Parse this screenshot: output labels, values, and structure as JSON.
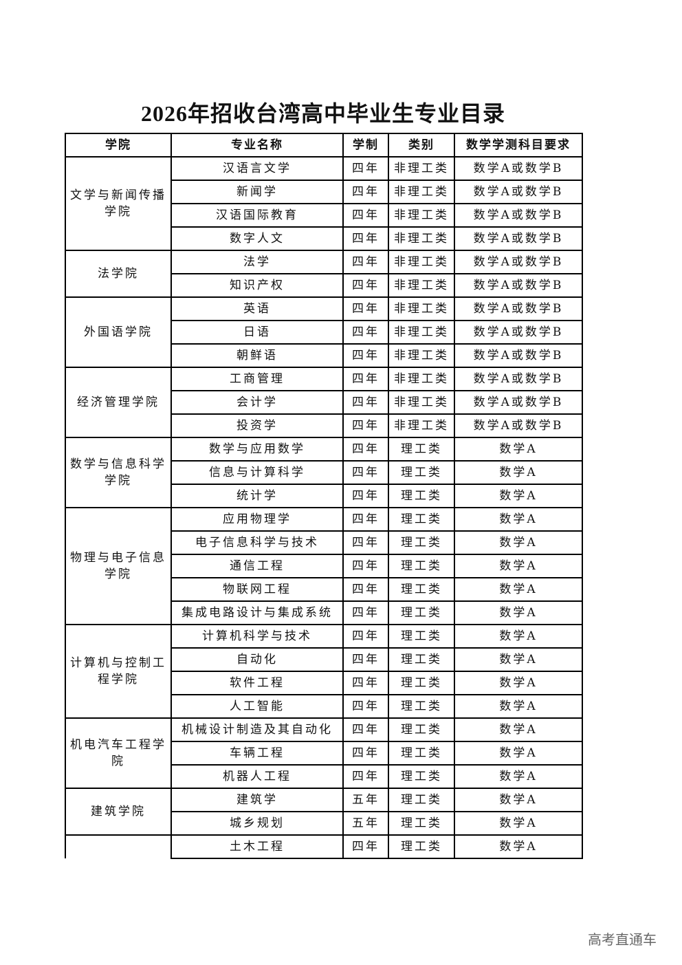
{
  "title": "2026年招收台湾高中毕业生专业目录",
  "headers": [
    "学院",
    "专业名称",
    "学制",
    "类别",
    "数学学测科目要求"
  ],
  "groups": [
    {
      "college": "文学与新闻传播学院",
      "majors": [
        [
          "汉语言文学",
          "四年",
          "非理工类",
          "数学A或数学B"
        ],
        [
          "新闻学",
          "四年",
          "非理工类",
          "数学A或数学B"
        ],
        [
          "汉语国际教育",
          "四年",
          "非理工类",
          "数学A或数学B"
        ],
        [
          "数字人文",
          "四年",
          "非理工类",
          "数学A或数学B"
        ]
      ]
    },
    {
      "college": "法学院",
      "majors": [
        [
          "法学",
          "四年",
          "非理工类",
          "数学A或数学B"
        ],
        [
          "知识产权",
          "四年",
          "非理工类",
          "数学A或数学B"
        ]
      ]
    },
    {
      "college": "外国语学院",
      "majors": [
        [
          "英语",
          "四年",
          "非理工类",
          "数学A或数学B"
        ],
        [
          "日语",
          "四年",
          "非理工类",
          "数学A或数学B"
        ],
        [
          "朝鲜语",
          "四年",
          "非理工类",
          "数学A或数学B"
        ]
      ]
    },
    {
      "college": "经济管理学院",
      "majors": [
        [
          "工商管理",
          "四年",
          "非理工类",
          "数学A或数学B"
        ],
        [
          "会计学",
          "四年",
          "非理工类",
          "数学A或数学B"
        ],
        [
          "投资学",
          "四年",
          "非理工类",
          "数学A或数学B"
        ]
      ]
    },
    {
      "college": "数学与信息科学学院",
      "majors": [
        [
          "数学与应用数学",
          "四年",
          "理工类",
          "数学A"
        ],
        [
          "信息与计算科学",
          "四年",
          "理工类",
          "数学A"
        ],
        [
          "统计学",
          "四年",
          "理工类",
          "数学A"
        ]
      ]
    },
    {
      "college": "物理与电子信息学院",
      "majors": [
        [
          "应用物理学",
          "四年",
          "理工类",
          "数学A"
        ],
        [
          "电子信息科学与技术",
          "四年",
          "理工类",
          "数学A"
        ],
        [
          "通信工程",
          "四年",
          "理工类",
          "数学A"
        ],
        [
          "物联网工程",
          "四年",
          "理工类",
          "数学A"
        ],
        [
          "集成电路设计与集成系统",
          "四年",
          "理工类",
          "数学A"
        ]
      ]
    },
    {
      "college": "计算机与控制工程学院",
      "majors": [
        [
          "计算机科学与技术",
          "四年",
          "理工类",
          "数学A"
        ],
        [
          "自动化",
          "四年",
          "理工类",
          "数学A"
        ],
        [
          "软件工程",
          "四年",
          "理工类",
          "数学A"
        ],
        [
          "人工智能",
          "四年",
          "理工类",
          "数学A"
        ]
      ]
    },
    {
      "college": "机电汽车工程学院",
      "majors": [
        [
          "机械设计制造及其自动化",
          "四年",
          "理工类",
          "数学A"
        ],
        [
          "车辆工程",
          "四年",
          "理工类",
          "数学A"
        ],
        [
          "机器人工程",
          "四年",
          "理工类",
          "数学A"
        ]
      ]
    },
    {
      "college": "建筑学院",
      "majors": [
        [
          "建筑学",
          "五年",
          "理工类",
          "数学A"
        ],
        [
          "城乡规划",
          "五年",
          "理工类",
          "数学A"
        ]
      ]
    },
    {
      "college": "",
      "majors": [
        [
          "土木工程",
          "四年",
          "理工类",
          "数学A"
        ]
      ]
    }
  ],
  "watermark": "高考直通车"
}
